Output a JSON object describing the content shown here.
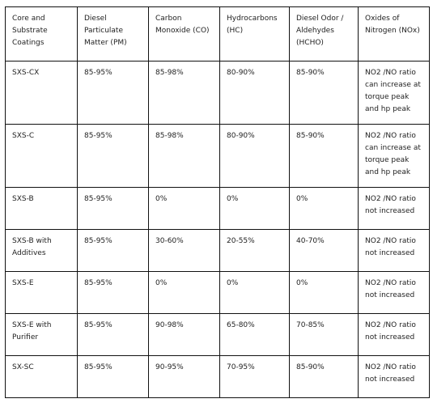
{
  "table": {
    "header": [
      "Core and Substrate Coatings",
      "Diesel Particulate Matter (PM)",
      "Carbon Monoxide (CO)",
      "Hydrocarbons (HC)",
      "Diesel Odor / Aldehydes (HCHO)",
      "Oxides of Nitrogen (NOx)"
    ],
    "rows": [
      [
        "SXS-CX",
        "85-95%",
        "85-98%",
        "80-90%",
        "85-90%",
        "NO2 /NO ratio can increase at torque peak and hp peak"
      ],
      [
        "SXS-C",
        "85-95%",
        "85-98%",
        "80-90%",
        "85-90%",
        "NO2 /NO ratio can increase at torque peak and hp peak"
      ],
      [
        "SXS-B",
        "85-95%",
        "0%",
        "0%",
        "0%",
        "NO2 /NO ratio not increased"
      ],
      [
        "SXS-B with Additives",
        "85-95%",
        "30-60%",
        "20-55%",
        "40-70%",
        "NO2 /NO ratio not increased"
      ],
      [
        "SXS-E",
        "85-95%",
        "0%",
        "0%",
        "0%",
        "NO2 /NO ratio not increased"
      ],
      [
        "SXS-E with Purifier",
        "85-95%",
        "90-98%",
        "65-80%",
        "70-85%",
        "NO2 /NO ratio not increased"
      ],
      [
        "SX-SC",
        "85-95%",
        "90-95%",
        "70-95%",
        "85-90%",
        "NO2 /NO ratio not increased"
      ]
    ]
  }
}
